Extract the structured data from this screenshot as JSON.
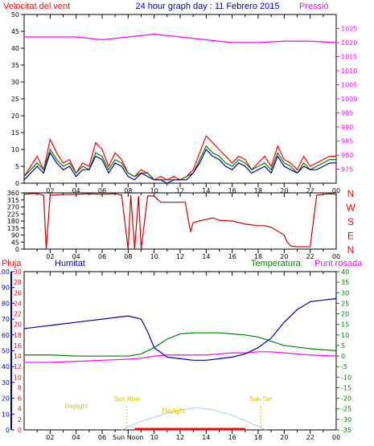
{
  "title": "24 hour graph day : 11 Febrero 2015",
  "colors": {
    "wind": "#ff0000",
    "wind_dir": "#cc0000",
    "pressure": "#ff00ff",
    "humidity": "#0000aa",
    "temperature": "#008000",
    "dewpoint": "#ff00ff",
    "rain": "#ff0000",
    "sun_labels": "#e0c000",
    "sun_arc": "#a8d0f0"
  },
  "x_ticks": [
    "02",
    "04",
    "06",
    "08",
    "10",
    "12",
    "14",
    "16",
    "18",
    "20",
    "22",
    "00"
  ],
  "chart_data": [
    {
      "type": "line",
      "title": "24 hour graph day : 11 Febrero 2015",
      "ylabel": "Velocitat del vent",
      "y2label": "Pressió",
      "ylim": [
        0,
        50
      ],
      "y_ticks": [
        0,
        5,
        10,
        15,
        20,
        25,
        30,
        35,
        40,
        45,
        50
      ],
      "y2lim": [
        970,
        1030
      ],
      "y2_ticks": [
        975,
        980,
        985,
        990,
        995,
        1000,
        1005,
        1010,
        1015,
        1020,
        1025
      ],
      "xlim": [
        0,
        24
      ],
      "series": [
        {
          "key": "wind_gust",
          "x": [
            0,
            0.5,
            1,
            1.5,
            2,
            2.5,
            3,
            3.5,
            4,
            4.5,
            5,
            5.5,
            6,
            6.5,
            7,
            7.5,
            8,
            8.5,
            9,
            9.5,
            10,
            10.5,
            11,
            11.5,
            12,
            12.5,
            13,
            13.5,
            14,
            14.5,
            15,
            15.5,
            16,
            16.5,
            17,
            17.5,
            18,
            18.5,
            19,
            19.5,
            20,
            20.5,
            21,
            21.5,
            22,
            22.5,
            23,
            23.5,
            24
          ],
          "values": [
            2,
            5,
            8,
            4,
            13,
            9,
            6,
            7,
            3,
            6,
            5,
            12,
            10,
            5,
            9,
            7,
            3,
            2,
            4,
            3,
            1,
            2,
            1,
            2,
            1,
            2,
            4,
            9,
            14,
            12,
            10,
            8,
            6,
            8,
            7,
            4,
            6,
            8,
            5,
            11,
            7,
            6,
            4,
            8,
            5,
            6,
            7,
            8,
            8
          ]
        },
        {
          "key": "wind_avg",
          "x": [
            0,
            0.5,
            1,
            1.5,
            2,
            2.5,
            3,
            3.5,
            4,
            4.5,
            5,
            5.5,
            6,
            6.5,
            7,
            7.5,
            8,
            8.5,
            9,
            9.5,
            10,
            10.5,
            11,
            11.5,
            12,
            12.5,
            13,
            13.5,
            14,
            14.5,
            15,
            15.5,
            16,
            16.5,
            17,
            17.5,
            18,
            18.5,
            19,
            19.5,
            20,
            20.5,
            21,
            21.5,
            22,
            22.5,
            23,
            23.5,
            24
          ],
          "values": [
            1,
            3,
            5,
            3,
            9,
            6,
            4,
            5,
            2,
            4,
            4,
            8,
            7,
            3,
            6,
            5,
            2,
            1,
            3,
            2,
            1,
            1,
            0,
            1,
            1,
            1,
            3,
            6,
            10,
            8,
            7,
            5,
            4,
            6,
            5,
            3,
            4,
            5,
            3,
            8,
            5,
            4,
            3,
            5,
            4,
            4,
            5,
            6,
            6
          ]
        },
        {
          "key": "wind_dir_avg",
          "x": [
            0,
            0.5,
            1,
            1.5,
            2,
            2.5,
            3,
            3.5,
            4,
            4.5,
            5,
            5.5,
            6,
            6.5,
            7,
            7.5,
            8,
            8.5,
            9,
            9.5,
            10,
            10.5,
            11,
            11.5,
            12,
            12.5,
            13,
            13.5,
            14,
            14.5,
            15,
            15.5,
            16,
            16.5,
            17,
            17.5,
            18,
            18.5,
            19,
            19.5,
            20,
            20.5,
            21,
            21.5,
            22,
            22.5,
            23,
            23.5,
            24
          ],
          "values": [
            2,
            4,
            6,
            4,
            10,
            7,
            5,
            6,
            3,
            5,
            4,
            9,
            8,
            4,
            7,
            6,
            3,
            2,
            3,
            3,
            1,
            1,
            1,
            1,
            1,
            2,
            3,
            7,
            11,
            9,
            8,
            6,
            5,
            7,
            6,
            4,
            5,
            6,
            4,
            9,
            6,
            5,
            3,
            6,
            4,
            5,
            6,
            7,
            7
          ]
        },
        {
          "key": "pressure",
          "axis": "y2",
          "x": [
            0,
            2,
            4,
            6,
            8,
            9,
            10,
            12,
            14,
            16,
            17,
            18,
            20,
            22,
            24
          ],
          "values": [
            1022,
            1022,
            1022,
            1021,
            1022,
            1022.5,
            1023,
            1022,
            1021,
            1020,
            1020,
            1020,
            1020.5,
            1020.5,
            1020
          ]
        }
      ]
    },
    {
      "type": "line",
      "ylabel": "Wind direction",
      "ylim": [
        0,
        360
      ],
      "y_ticks": [
        0,
        45,
        90,
        135,
        180,
        225,
        270,
        315,
        360
      ],
      "y2_ticks": [
        "N",
        "W",
        "S",
        "E",
        "N"
      ],
      "xlim": [
        0,
        24
      ],
      "series": [
        {
          "key": "wind_direction",
          "x": [
            0,
            0.5,
            1,
            1.5,
            1.7,
            2,
            3,
            4,
            5,
            6,
            7,
            7.5,
            8,
            8.2,
            8.5,
            8.8,
            9,
            9.5,
            10,
            10.5,
            11,
            11.5,
            12,
            12.4,
            12.6,
            12.8,
            13,
            13.5,
            14,
            14.5,
            15,
            16,
            17,
            18,
            18.5,
            19,
            20,
            20.2,
            20.5,
            21,
            22,
            22.5,
            23,
            23.5,
            24
          ],
          "values": [
            350,
            355,
            355,
            345,
            0,
            345,
            350,
            350,
            355,
            350,
            355,
            345,
            0,
            345,
            0,
            340,
            0,
            340,
            340,
            300,
            300,
            300,
            300,
            300,
            200,
            110,
            170,
            180,
            190,
            200,
            185,
            180,
            160,
            150,
            150,
            140,
            90,
            50,
            20,
            15,
            15,
            345,
            350,
            355,
            350
          ]
        }
      ]
    },
    {
      "type": "line",
      "legend": [
        "Pluja",
        "Humitat",
        "Temperatura",
        "Punt rosada"
      ],
      "y_left_outer_ticks": [
        0,
        10,
        20,
        30,
        40,
        50,
        60,
        70,
        80,
        90,
        100
      ],
      "y_left_inner_ticks": [
        0,
        2,
        4,
        6,
        8,
        10,
        12,
        14,
        16,
        18,
        20,
        22,
        24,
        26,
        28,
        30
      ],
      "y_right_ticks": [
        -35,
        -30,
        -25,
        -20,
        -15,
        -10,
        -5,
        0,
        5,
        10,
        15,
        20,
        25,
        30,
        35,
        40
      ],
      "xlim": [
        0,
        24
      ],
      "annotations": [
        "Sun Rise",
        "Sun Set",
        "Sun Noon",
        "Daylight",
        "Daylight"
      ],
      "series": [
        {
          "key": "humidity",
          "axis": "outer",
          "x": [
            0,
            1,
            2,
            3,
            4,
            5,
            6,
            7,
            8,
            8.5,
            9,
            9.5,
            10,
            11,
            12,
            13,
            14,
            15,
            16,
            17,
            18,
            19,
            20,
            21,
            22,
            23,
            24
          ],
          "values": [
            64,
            65,
            66,
            67,
            68,
            69,
            70,
            71,
            72,
            71,
            70,
            62,
            52,
            46,
            45,
            44,
            44,
            45,
            46,
            48,
            52,
            58,
            68,
            76,
            81,
            82,
            83
          ]
        },
        {
          "key": "temperature",
          "axis": "right",
          "x": [
            0,
            2,
            4,
            6,
            8,
            9,
            10,
            11,
            12,
            13,
            14,
            15,
            16,
            17,
            18,
            19,
            20,
            22,
            24
          ],
          "values": [
            0.5,
            0.5,
            0,
            0,
            0,
            1,
            4,
            8,
            10.5,
            11,
            11,
            11,
            10.5,
            10,
            9,
            7,
            5,
            3.5,
            2.5
          ]
        },
        {
          "key": "dewpoint",
          "axis": "right",
          "x": [
            0,
            2,
            4,
            6,
            8,
            9,
            10,
            11,
            12,
            13,
            14,
            15,
            16,
            17,
            18,
            19,
            20,
            22,
            24
          ],
          "values": [
            -3,
            -3,
            -2.5,
            -2,
            -1.5,
            -1,
            0,
            0.5,
            0.5,
            0.5,
            0.5,
            1,
            1.5,
            1.5,
            2,
            2,
            1.5,
            0.5,
            0
          ]
        },
        {
          "key": "sun_elevation",
          "axis": "right",
          "x": [
            7.5,
            9,
            10.5,
            12,
            13.3,
            14.5,
            16,
            17.5,
            18.6
          ],
          "values": [
            -35,
            -31,
            -28,
            -25.5,
            -24.5,
            -25.5,
            -28,
            -32,
            -35
          ]
        },
        {
          "key": "rain",
          "axis": "inner",
          "x": [
            8.5,
            17
          ],
          "values": [
            0,
            0
          ]
        }
      ]
    }
  ],
  "labels": {
    "wind_speed": "Velocitat del vent",
    "pressure": "Pressió",
    "rain": "Pluja",
    "humidity": "Humitat",
    "temperature": "Temperatura",
    "dewpoint": "Punt rosada",
    "sunrise": "Sun Rise",
    "sunset": "Sun Set",
    "sunnoon": "Sun Noon",
    "daylight": "Daylight",
    "compass": [
      "N",
      "W",
      "S",
      "E",
      "N"
    ]
  }
}
